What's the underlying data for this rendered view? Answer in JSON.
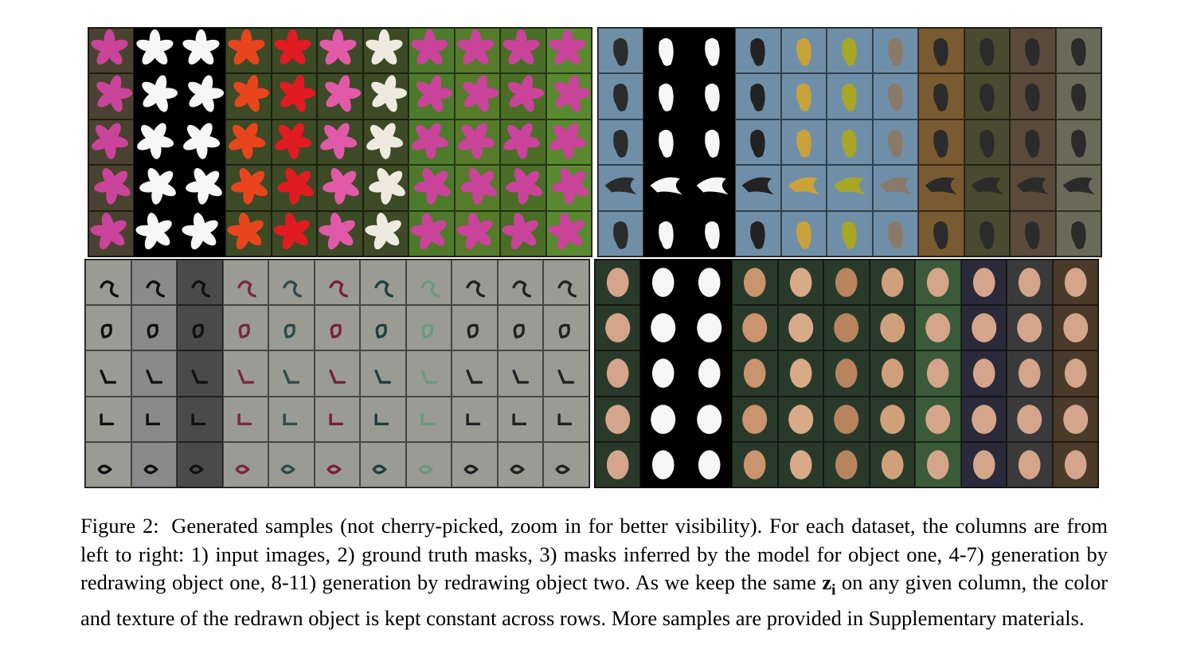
{
  "figure": {
    "caption_label": "Figure 2:",
    "caption_part1": "Generated samples (not cherry-picked, zoom in for better visibility). For each dataset, the columns are from left to right: 1) input images, 2) ground truth masks, 3) masks inferred by the model for object one, 4-7) generation by redrawing object one, 8-11) generation by redrawing object two. As we keep the same",
    "caption_symbol": "z",
    "caption_subscript": "i",
    "caption_part2": "on any given column, the color and texture of the redrawn object is kept constant across rows. More samples are provided in Supplementary materials."
  },
  "panels": [
    {
      "name": "flowers",
      "rows": 5,
      "cols": 11,
      "object_colors": [
        "#c9449a",
        "#f6f6f6",
        "#f6f6f6",
        "#e8451c",
        "#e01b22",
        "#e05aa8",
        "#eeeae0",
        "#c9449a",
        "#c9449a",
        "#c9449a",
        "#c9449a"
      ],
      "background_colors": [
        "#4a4230",
        "#000000",
        "#000000",
        "#3d4a26",
        "#3d4a26",
        "#3d4a26",
        "#3d4a26",
        "#4e7a2c",
        "#567b2a",
        "#4a6e26",
        "#5a8a30"
      ]
    },
    {
      "name": "birds",
      "rows": 5,
      "cols": 11,
      "object_colors": [
        "#2b2b2b",
        "#f6f6f6",
        "#f6f6f6",
        "#222222",
        "#c9a23a",
        "#a8a625",
        "#8a7a6a",
        "#2b2b2b",
        "#2b2b2b",
        "#2b2b2b",
        "#2b2b2b"
      ],
      "background_colors": [
        "#6f8fa8",
        "#000000",
        "#000000",
        "#6f8fa8",
        "#6f8fa8",
        "#6f8fa8",
        "#6f8fa8",
        "#7a5a30",
        "#4a4a30",
        "#5a4a3a",
        "#6a6a58"
      ]
    },
    {
      "name": "digits",
      "rows": 5,
      "cols": 11,
      "object_colors": [
        "#111111",
        "#111111",
        "#111111",
        "#7a2a3a",
        "#2f4a4a",
        "#7a1f3a",
        "#1f3f3f",
        "#6a9a7a",
        "#222222",
        "#222222",
        "#222222"
      ],
      "background_colors": [
        "#9a9c94",
        "#8a8a8a",
        "#4a4a4a",
        "#9a9c94",
        "#9a9c94",
        "#9a9c94",
        "#9a9c94",
        "#9a9c94",
        "#9a9c94",
        "#9a9c94",
        "#9a9c94"
      ]
    },
    {
      "name": "faces",
      "rows": 5,
      "cols": 11,
      "object_colors": [
        "#d4a58a",
        "#f6f6f6",
        "#f6f6f6",
        "#c9946e",
        "#d8aa88",
        "#b8845e",
        "#d0a07a",
        "#d4a58a",
        "#d4a58a",
        "#d4a58a",
        "#d4a58a"
      ],
      "background_colors": [
        "#2a3a2a",
        "#000000",
        "#000000",
        "#2a3a2a",
        "#2a3a2a",
        "#2a3a2a",
        "#2a3a2a",
        "#3a5a3a",
        "#2a2a3a",
        "#3a3a3a",
        "#4a3a2a"
      ]
    }
  ]
}
